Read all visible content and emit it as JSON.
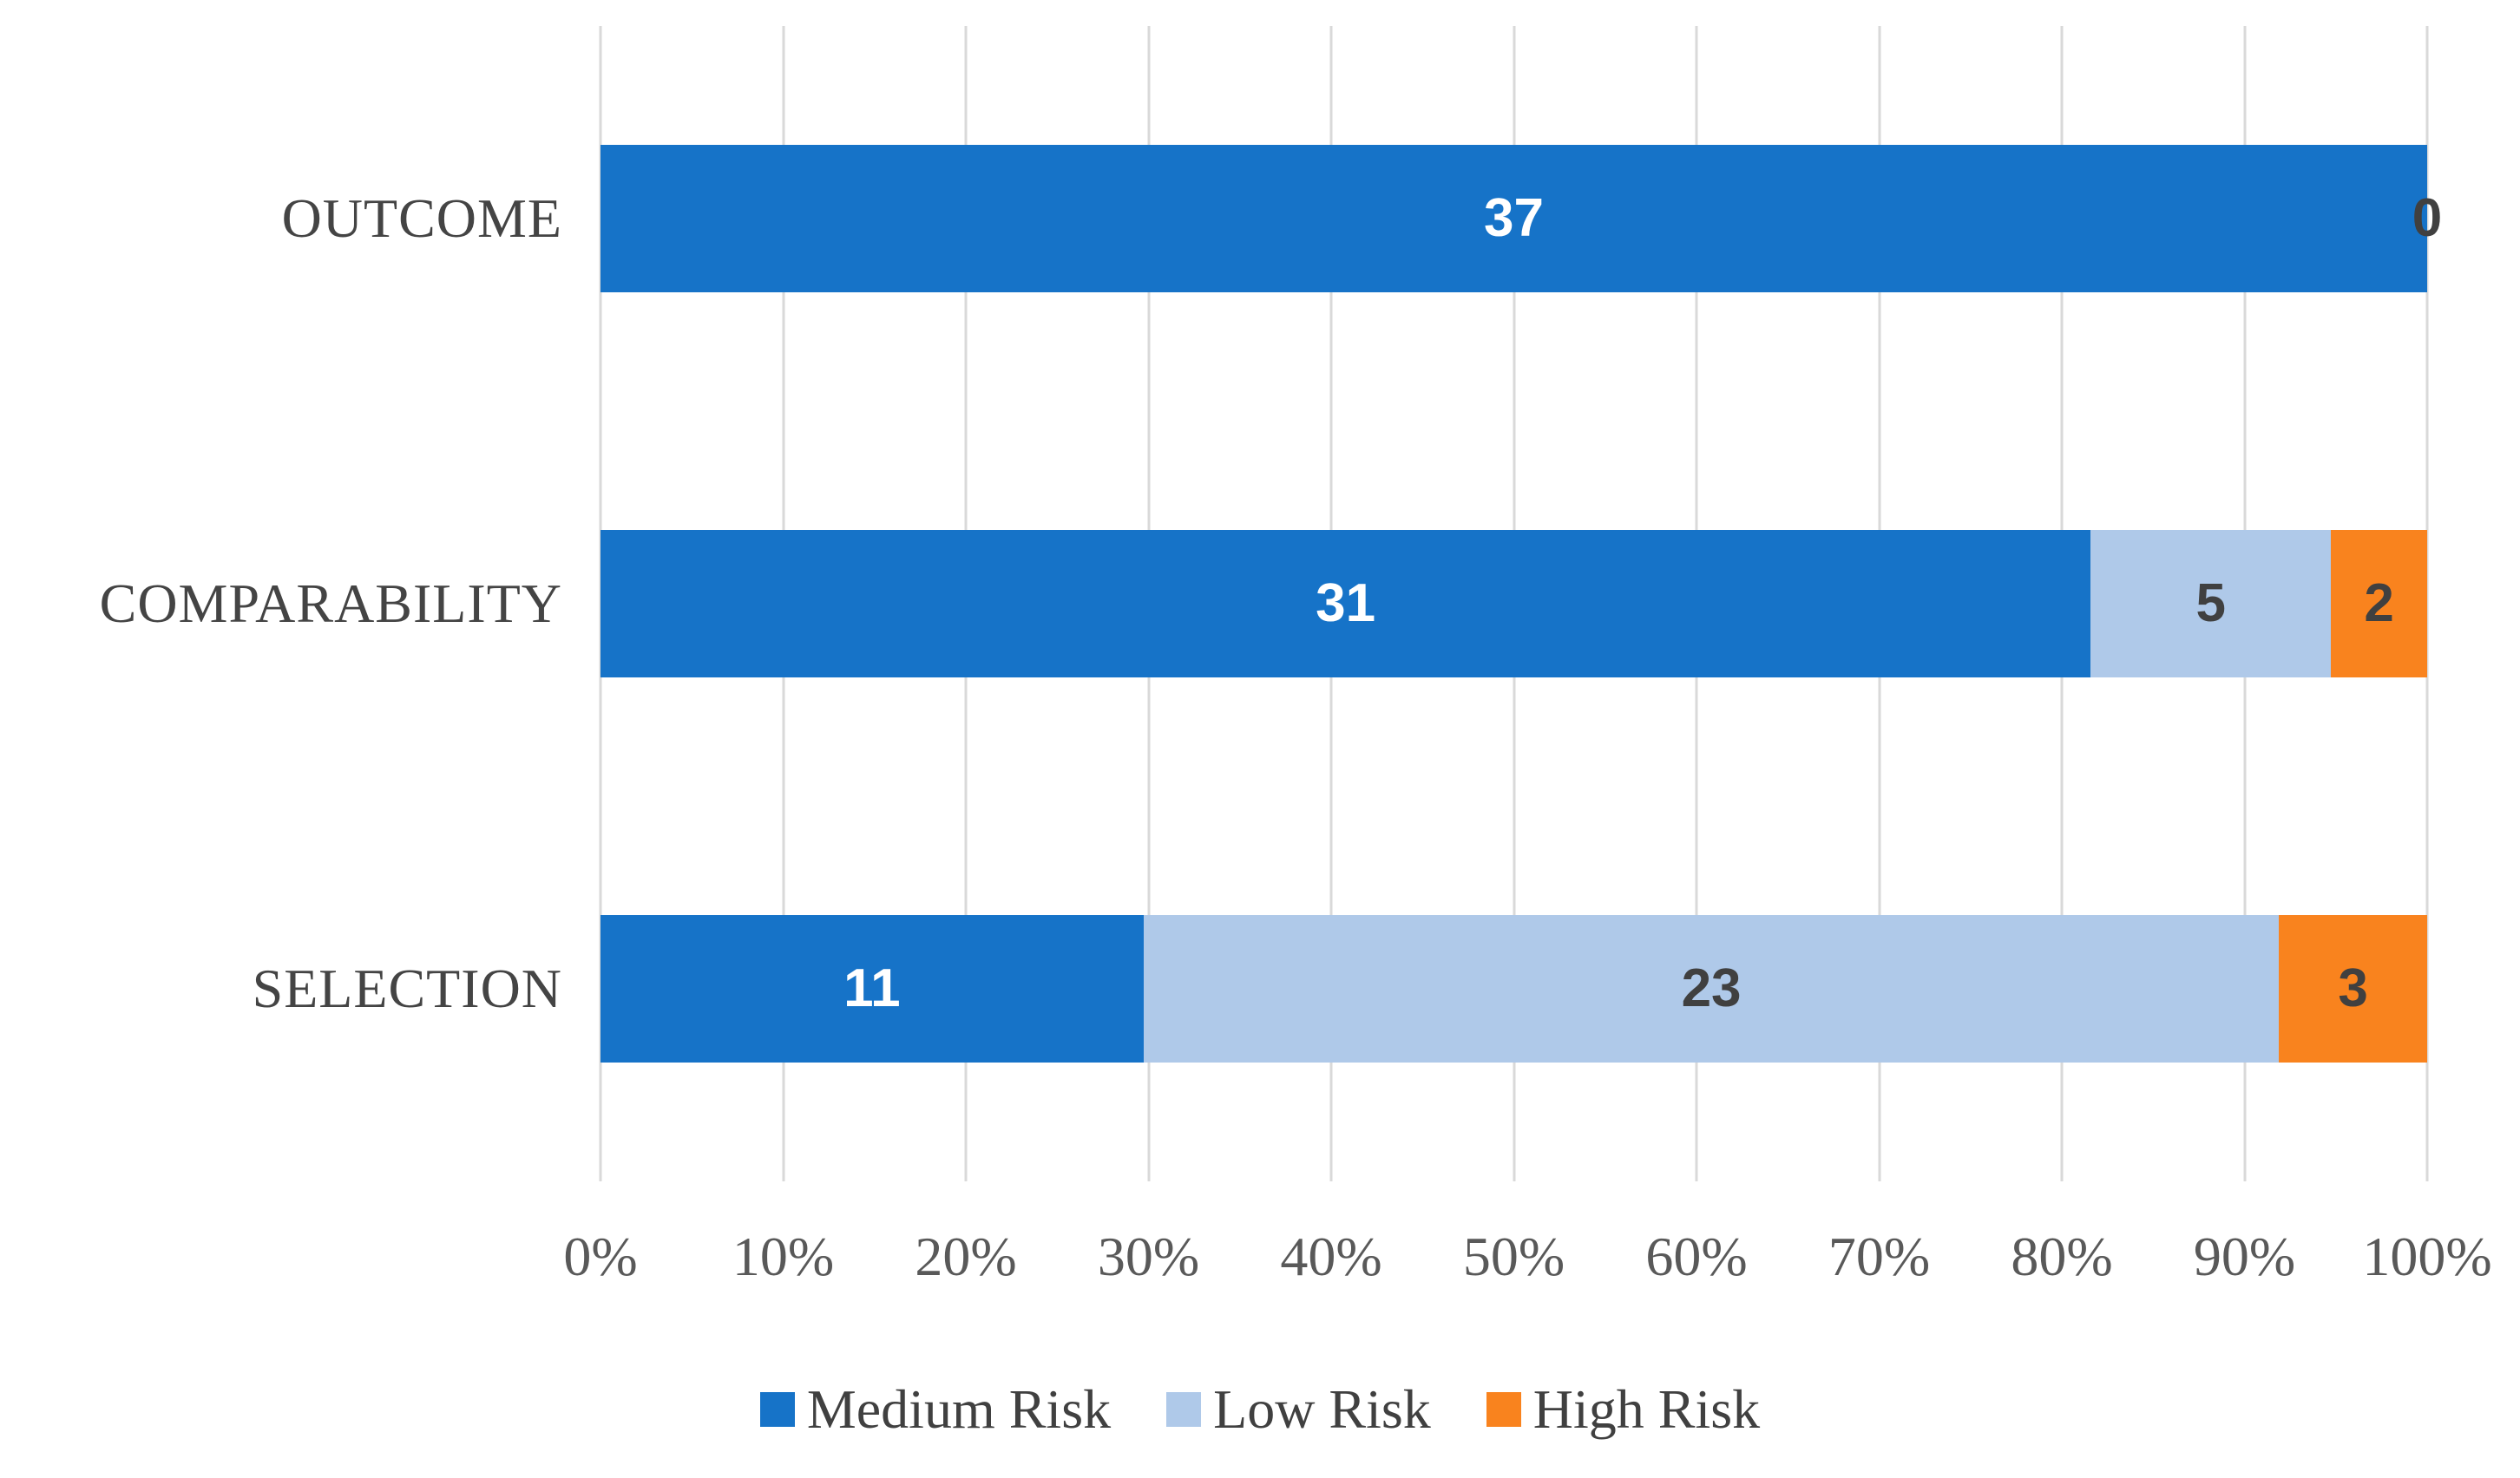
{
  "chart_data": {
    "type": "bar",
    "orientation": "horizontal",
    "mode": "100% stacked",
    "title": "",
    "xlabel": "",
    "ylabel": "",
    "categories": [
      "OUTCOME",
      "COMPARABILITY",
      "SELECTION"
    ],
    "series": [
      {
        "name": "Medium Risk",
        "color": "#1673C8",
        "label_color": "#FFFFFF",
        "values": [
          37,
          31,
          11
        ],
        "labels": [
          "37",
          "31",
          "11"
        ]
      },
      {
        "name": "Low Risk",
        "color": "#AFC9E9",
        "label_color": "#404040",
        "values": [
          0,
          5,
          23
        ],
        "labels": [
          "0",
          "5",
          "23"
        ]
      },
      {
        "name": "High Risk",
        "color": "#F9831E",
        "label_color": "#404040",
        "values": [
          0,
          2,
          3
        ],
        "labels": [
          "",
          "2",
          "3"
        ]
      }
    ],
    "x_tick_labels": [
      "0%",
      "10%",
      "20%",
      "30%",
      "40%",
      "50%",
      "60%",
      "70%",
      "80%",
      "90%",
      "100%"
    ],
    "xlim": [
      0,
      100
    ],
    "gridlines": "vertical",
    "legend_position": "bottom",
    "legend_entries": [
      "Medium Risk",
      "Low Risk",
      "High Risk"
    ]
  },
  "colors": {
    "background": "#FFFFFF",
    "gridline": "#D9D9D9",
    "axis_text": "#595959",
    "category_text": "#444444"
  }
}
